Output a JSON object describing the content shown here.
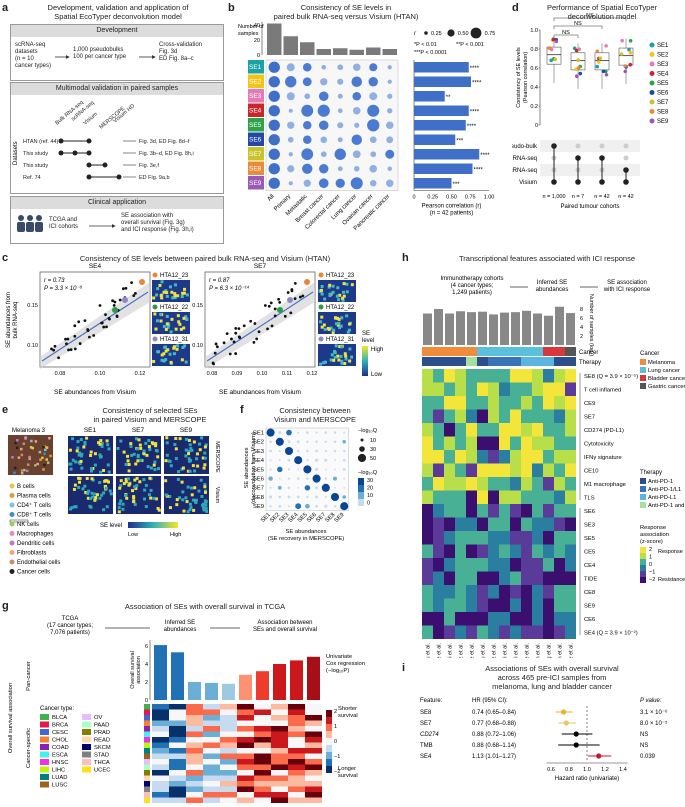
{
  "panel_a": {
    "label": "a",
    "title_line1": "Development, validation and application of",
    "title_line2": "Spatial EcoTyper deconvolution model",
    "dev_head": "Development",
    "dev_left1": "scRNA-seq",
    "dev_left2": "datasets",
    "dev_left3": "(n = 10",
    "dev_left4": "cancer types)",
    "dev_mid1": "1,000 pseudobulks",
    "dev_mid2": "100 per cancer type",
    "dev_right1": "Cross-validation",
    "dev_right2": "Fig. 3d",
    "dev_right3": "ED Fig. 8a–c",
    "multi_head": "Multimodal validation in paired samples",
    "col_bulk": "Bulk RNA-seq",
    "col_sc": "scRNA-seq",
    "col_visium": "Visium",
    "col_merscope": "MERSCOPE",
    "col_visiumhd": "Visium HD",
    "row1": "HTAN (ref. 44)",
    "row2": "This study",
    "row3": "This study",
    "row4": "Ref. 74",
    "ref1": "Fig. 3d, ED Fig. 8d–f",
    "ref2": "Fig. 3b–d, ED Fig. 8h,i",
    "ref3": "Fig. 3e,f",
    "ref4": "ED Fig. 9a,b",
    "datasets_label": "Datasets",
    "clin_head": "Clinical application",
    "clin_left1": "TCGA and",
    "clin_left2": "ICI cohorts",
    "clin_right1": "SE association with",
    "clin_right2": "overall survival (Fig. 3g)",
    "clin_right3": "and ICI response (Fig. 3h,i)"
  },
  "panel_b": {
    "label": "b",
    "title_line1": "Consistency of SE levels in",
    "title_line2": "paired bulk RNA-seq versus Visium (HTAN)",
    "top_ylabel1": "Number of",
    "top_ylabel2": "samples",
    "top_ticks": [
      "0",
      "20",
      "40"
    ],
    "rows": [
      "SE1",
      "SE2",
      "SE3",
      "SE4",
      "SE5",
      "SE6",
      "SE7",
      "SE8",
      "SE9"
    ],
    "cols": [
      "All",
      "Primary",
      "Metastatic",
      "Breast cancer",
      "Colorectal cancer",
      "Lung cancer",
      "Ovarian cancer",
      "Pancreatic cancer"
    ],
    "legend_r": "r",
    "legend_vals": [
      "0.25",
      "0.50",
      "0.75"
    ],
    "sig1": "*P < 0.01",
    "sig2": "**P < 0.001",
    "sig3": "***P < 0.0001",
    "bar_xlabel1": "Pearson correlation (r)",
    "bar_xlabel2": "(n = 42 patients)",
    "bar_ticks": [
      "0",
      "0.25",
      "0.50",
      "0.75",
      "1.00"
    ],
    "stars": [
      "****",
      "****",
      "**",
      "****",
      "****",
      "***",
      "****",
      "****",
      "***"
    ]
  },
  "panel_d": {
    "label": "d",
    "title_line1": "Performance of Spatial EcoTyper",
    "title_line2": "deconvolution model",
    "ylabel1": "Consistency of SE levels",
    "ylabel2": "(Pearson correlation)",
    "yticks": [
      "0",
      "0.2",
      "0.4",
      "0.6",
      "0.8",
      "1.0"
    ],
    "ns": [
      "NS",
      "NS",
      "NS"
    ],
    "legend": [
      "SE1",
      "SE2",
      "SE3",
      "SE4",
      "SE5",
      "SE6",
      "SE7",
      "SE8",
      "SE9"
    ],
    "rows": [
      "Pseudo-bulk",
      "Bulk RNA-seq",
      "scRNA-seq",
      "Visium"
    ],
    "ns_labels": [
      "n = 1,000",
      "n = 7",
      "n = 42",
      "n = 42"
    ],
    "xlabel": "Paired tumour cohorts"
  },
  "panel_c": {
    "label": "c",
    "title": "Consistency of SE levels between paired bulk RNA-seq and Visium (HTAN)",
    "se4": "SE4",
    "se7": "SE7",
    "r1": "r = 0.73",
    "p1": "P = 3.3 × 10⁻⁸",
    "r2": "r = 0.87",
    "p2": "P = 6.3 × 10⁻¹⁴",
    "ylabel1": "SE abundances from",
    "ylabel2": "bulk RNA-seq",
    "xlabel": "SE abundances from Visium",
    "xticks1": [
      "0.08",
      "0.10",
      "0.12"
    ],
    "yticks1": [
      "0.10",
      "0.15"
    ],
    "xticks2": [
      "0.08",
      "0.09",
      "0.10",
      "0.11",
      "0.12"
    ],
    "yticks2": [
      "0.10",
      "0.15"
    ],
    "samples": [
      "HTA12_23",
      "HTA12_22",
      "HTA12_31"
    ],
    "se_level": "SE",
    "se_level2": "level",
    "high": "High",
    "low": "Low"
  },
  "panel_e": {
    "label": "e",
    "title_line1": "Consistency of selected SEs",
    "title_line2": "in paired Visium and MERSCOPE",
    "sample": "Melanoma 3",
    "cols": [
      "SE1",
      "SE7",
      "SE9"
    ],
    "merscope": "MERSCOPE",
    "visium": "Visium",
    "cell_types": [
      "B cells",
      "Plasma cells",
      "CD4⁺ T cells",
      "CD8⁺ T cells",
      "NK cells",
      "Macrophages",
      "Dendritic cells",
      "Fibroblasts",
      "Endothelial cells",
      "Cancer cells"
    ],
    "cell_colors": [
      "#e8c547",
      "#d9a03a",
      "#7cc5d9",
      "#3a8fc7",
      "#9bc96b",
      "#e08fb5",
      "#b57cc4",
      "#f0a572",
      "#c98e6a",
      "#222222"
    ],
    "se_level": "SE level",
    "low": "Low",
    "high": "High"
  },
  "panel_f": {
    "label": "f",
    "title_line1": "Consistency between",
    "title_line2": "Visium and MERSCOPE",
    "rows": [
      "SE1",
      "SE2",
      "SE3",
      "SE4",
      "SE5",
      "SE6",
      "SE7",
      "SE8",
      "SE9"
    ],
    "cols": [
      "SE1",
      "SE2",
      "SE3",
      "SE4",
      "SE5",
      "SE6",
      "SE7",
      "SE8",
      "SE9"
    ],
    "ylabel1": "SE abundances",
    "ylabel2": "(deconvolution from Visium)",
    "xlabel1": "SE abundances",
    "xlabel2": "(SE recovery in MERSCOPE)",
    "legend_size_title": "−log₁₀Q",
    "legend_size_vals": [
      "10",
      "30",
      "50"
    ],
    "legend_col_title": "−log₁₀Q",
    "legend_col_vals": [
      "30",
      "20",
      "10",
      "0"
    ]
  },
  "panel_g": {
    "label": "g",
    "title": "Association of SEs with overall survival in TCGA",
    "tcga1": "TCGA",
    "tcga2": "(17 cancer types;",
    "tcga3": "7,076 patients)",
    "inferred1": "Inferred SE",
    "inferred2": "abundances",
    "assoc1": "Association between",
    "assoc2": "SEs and overall survival",
    "bar_ylabel1": "Overall survival",
    "bar_ylabel2": "association",
    "bar_yticks": [
      "0",
      "2",
      "4",
      "6"
    ],
    "univ1": "Univariate",
    "univ2": "Cox regression",
    "univ3": "(−log₁₀P)",
    "pan": "Pan-cancer",
    "specific": "Cancer-specific",
    "side_label": "Overall survival association",
    "cancer_type": "Cancer type:",
    "cancers_left": [
      "BLCA",
      "BRCA",
      "CESC",
      "CHOL",
      "COAD",
      "ESCA",
      "HNSC",
      "LIHC",
      "LUAD",
      "LUSC"
    ],
    "cancers_right": [
      "OV",
      "PAAD",
      "PRAD",
      "READ",
      "SKCM",
      "STAD",
      "THCA",
      "UCEC"
    ],
    "colors_left": [
      "#3cb44b",
      "#e6194b",
      "#4363d8",
      "#f58231",
      "#911eb4",
      "#46f0f0",
      "#f032e6",
      "#bcf60c",
      "#008080",
      "#9a6324"
    ],
    "colors_right": [
      "#e6beff",
      "#aaffc3",
      "#808000",
      "#ffd8b1",
      "#000075",
      "#808080",
      "#fabebe",
      "#ffe119"
    ],
    "xcols": [
      "SE7",
      "SE8",
      "SE4",
      "SE5",
      "SE6",
      "SE1",
      "SE9",
      "SE2",
      "SE4",
      "SE3"
    ],
    "shorter": "Shorter",
    "survival": "survival",
    "longer": "Longer",
    "ticks": [
      "2",
      "1",
      "0",
      "−1",
      "−2"
    ]
  },
  "panel_h": {
    "label": "h",
    "title": "Transcriptional features associated with ICI response",
    "imm1": "Immunotherapy cohorts",
    "imm2": "(4 cancer types;",
    "imm3": "1,249 patients)",
    "inferred1": "Inferred SE",
    "inferred2": "abundances",
    "assoc1": "SE association",
    "assoc2": "with ICI response",
    "bar_ylabel1": "Number of",
    "bar_ylabel2": "samples (log₂)",
    "bar_ticks": [
      "8",
      "6",
      "4",
      "2"
    ],
    "cancer": "Cancer",
    "therapy": "Therapy",
    "cancer_legend_title": "Cancer",
    "cancer_legend": [
      "Melanoma",
      "Lung cancer",
      "Bladder cancer",
      "Gastric cancer"
    ],
    "cancer_colors": [
      "#f08c3a",
      "#5bc0de",
      "#d9383a",
      "#555555"
    ],
    "therapy_legend_title": "Therapy",
    "therapy_legend": [
      "Anti-PD-1",
      "Anti-PD-1/L1",
      "Anti-PD-L1",
      "Anti-PD-1 and anti-CTLA-4"
    ],
    "therapy_colors": [
      "#2c4e8a",
      "#3a74b8",
      "#5ab6e0",
      "#a8dfa0"
    ],
    "features": [
      "SE8 (Q = 3.9 × 10⁻⁵)",
      "T cell inflamed",
      "CE9",
      "SE7",
      "CD274 (PD-L1)",
      "Cytotoxicity",
      "IFNγ signature",
      "CE10",
      "M1 macrophage",
      "TLS",
      "SE6",
      "SE3",
      "SE5",
      "CE5",
      "CE4",
      "TIDE",
      "CE8",
      "SE9",
      "CE6",
      "SE4 (Q = 3.9 × 10⁻²)"
    ],
    "response_title1": "Response",
    "response_title2": "association",
    "response_title3": "(z-score)",
    "response_ticks": [
      "2",
      "1",
      "0",
      "−1",
      "−2"
    ],
    "response": "Response",
    "resistance": "Resistance",
    "studies": [
      "Liu et al.",
      "He et al.",
      "Cui et al.",
      "Riaz et al.",
      "Gide et al.",
      "Liu et al.",
      "Riaz et al.",
      "Ravi et al.",
      "Ravi et al.",
      "Lee et al.",
      "Kim et al.",
      "Jung et al.",
      "Mariathasan et al.",
      "Gide et al."
    ]
  },
  "panel_i": {
    "label": "i",
    "title_line1": "Associations of SEs with overall survival",
    "title_line2": "across 465 pre-ICI samples from",
    "title_line3": "melanoma, lung and bladder cancer",
    "feature": "Feature:",
    "hr_head": "HR (95% CI):",
    "p_head": "P value:",
    "rows": [
      {
        "name": "SE8",
        "hr": "0.74 (0.65–0.84)",
        "p": "3.1 × 10⁻⁶",
        "color": "#e6b22e",
        "est": 0.74,
        "lo": 0.65,
        "hi": 0.84
      },
      {
        "name": "SE7",
        "hr": "0.77 (0.68–0.88)",
        "p": "8.0 × 10⁻⁵",
        "color": "#e6c86a",
        "est": 0.77,
        "lo": 0.68,
        "hi": 0.88
      },
      {
        "name": "CD274",
        "hr": "0.88 (0.72–1.06)",
        "p": "NS",
        "color": "#000000",
        "est": 0.88,
        "lo": 0.72,
        "hi": 1.06
      },
      {
        "name": "TMB",
        "hr": "0.88 (0.68–1.14)",
        "p": "NS",
        "color": "#000000",
        "est": 0.88,
        "lo": 0.68,
        "hi": 1.14
      },
      {
        "name": "SE4",
        "hr": "1.13 (1.01–1.27)",
        "p": "0.039",
        "color": "#c21b2e",
        "est": 1.13,
        "lo": 1.01,
        "hi": 1.27
      }
    ],
    "xticks": [
      "0.6",
      "0.8",
      "1.0",
      "1.2",
      "1.4"
    ],
    "xlabel": "Hazard ratio (univariate)"
  }
}
